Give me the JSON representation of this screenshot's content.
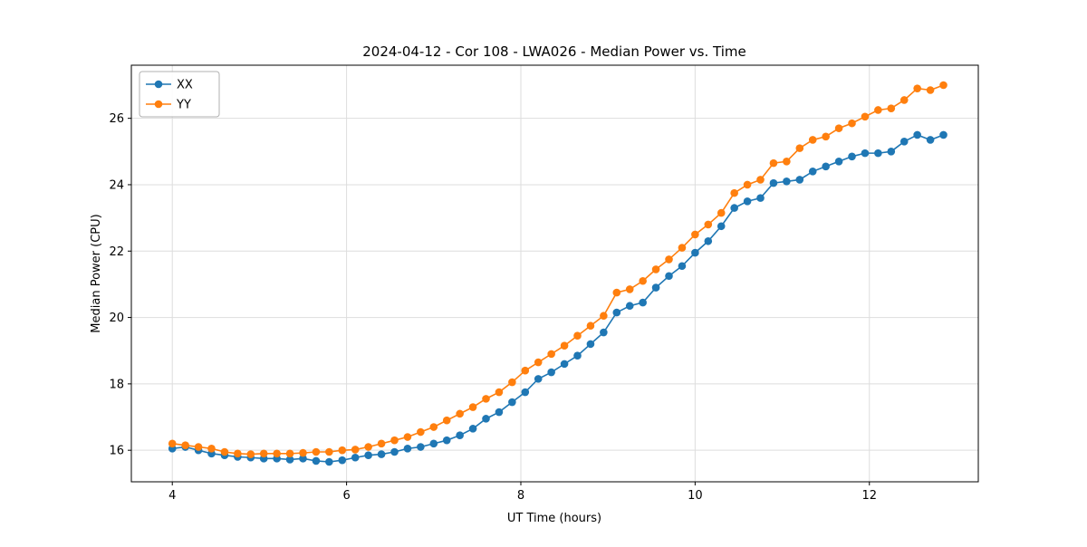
{
  "chart_data": {
    "type": "line",
    "title": "2024-04-12 - Cor 108 - LWA026 - Median Power vs. Time",
    "xlabel": "UT Time (hours)",
    "ylabel": "Median Power (CPU)",
    "xlim": [
      3.53,
      13.25
    ],
    "ylim": [
      15.05,
      27.6
    ],
    "xticks": [
      4,
      6,
      8,
      10,
      12
    ],
    "yticks": [
      16,
      18,
      20,
      22,
      24,
      26
    ],
    "grid": true,
    "legend_position": "upper left",
    "marker": "circle",
    "x": [
      4.0,
      4.15,
      4.3,
      4.45,
      4.6,
      4.75,
      4.9,
      5.05,
      5.2,
      5.35,
      5.5,
      5.65,
      5.8,
      5.95,
      6.1,
      6.25,
      6.4,
      6.55,
      6.7,
      6.85,
      7.0,
      7.15,
      7.3,
      7.45,
      7.6,
      7.75,
      7.9,
      8.05,
      8.2,
      8.35,
      8.5,
      8.65,
      8.8,
      8.95,
      9.1,
      9.25,
      9.4,
      9.55,
      9.7,
      9.85,
      10.0,
      10.15,
      10.3,
      10.45,
      10.6,
      10.75,
      10.9,
      11.05,
      11.2,
      11.35,
      11.5,
      11.65,
      11.8,
      11.95,
      12.1,
      12.25,
      12.4,
      12.55,
      12.7,
      12.85
    ],
    "series": [
      {
        "name": "XX",
        "color": "#1f77b4",
        "values": [
          16.05,
          16.1,
          16.0,
          15.9,
          15.85,
          15.8,
          15.78,
          15.75,
          15.75,
          15.72,
          15.75,
          15.68,
          15.65,
          15.7,
          15.78,
          15.85,
          15.88,
          15.95,
          16.05,
          16.1,
          16.2,
          16.3,
          16.45,
          16.65,
          16.95,
          17.15,
          17.45,
          17.75,
          18.15,
          18.35,
          18.6,
          18.85,
          19.2,
          19.55,
          20.15,
          20.35,
          20.45,
          20.9,
          21.25,
          21.55,
          21.95,
          22.3,
          22.75,
          23.3,
          23.5,
          23.6,
          24.05,
          24.1,
          24.15,
          24.4,
          24.55,
          24.7,
          24.85,
          24.95,
          24.95,
          25.0,
          25.3,
          25.5,
          25.35,
          25.5
        ]
      },
      {
        "name": "YY",
        "color": "#ff7f0e",
        "values": [
          16.2,
          16.15,
          16.1,
          16.05,
          15.95,
          15.9,
          15.88,
          15.9,
          15.9,
          15.9,
          15.92,
          15.95,
          15.95,
          16.0,
          16.02,
          16.1,
          16.2,
          16.3,
          16.4,
          16.55,
          16.7,
          16.9,
          17.1,
          17.3,
          17.55,
          17.75,
          18.05,
          18.4,
          18.65,
          18.9,
          19.15,
          19.45,
          19.75,
          20.05,
          20.75,
          20.85,
          21.1,
          21.45,
          21.75,
          22.1,
          22.5,
          22.8,
          23.15,
          23.75,
          24.0,
          24.15,
          24.65,
          24.7,
          25.1,
          25.35,
          25.45,
          25.7,
          25.85,
          26.05,
          26.25,
          26.3,
          26.55,
          26.9,
          26.85,
          27.0
        ]
      }
    ]
  }
}
